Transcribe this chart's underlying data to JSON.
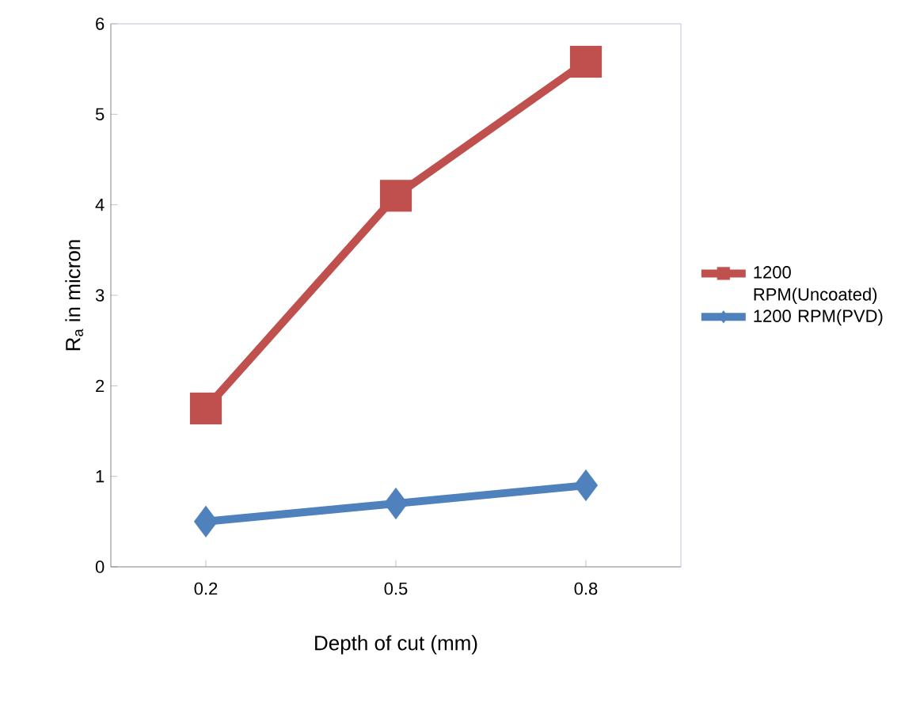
{
  "chart_data": {
    "type": "line",
    "xlabel": "Depth of cut (mm)",
    "ylabel": "R$_{a}$ in micron",
    "categories": [
      "0.2",
      "0.5",
      "0.8"
    ],
    "series": [
      {
        "name": "1200 RPM(Uncoated)",
        "color": "#c0504d",
        "marker": "square",
        "values": [
          1.75,
          4.1,
          5.58
        ]
      },
      {
        "name": "1200 RPM(PVD)",
        "color": "#4f81bd",
        "marker": "diamond",
        "values": [
          0.5,
          0.7,
          0.9
        ]
      }
    ],
    "ylim": [
      0,
      6
    ],
    "yticks": [
      0,
      1,
      2,
      3,
      4,
      5,
      6
    ],
    "grid": false,
    "legend": "right"
  }
}
